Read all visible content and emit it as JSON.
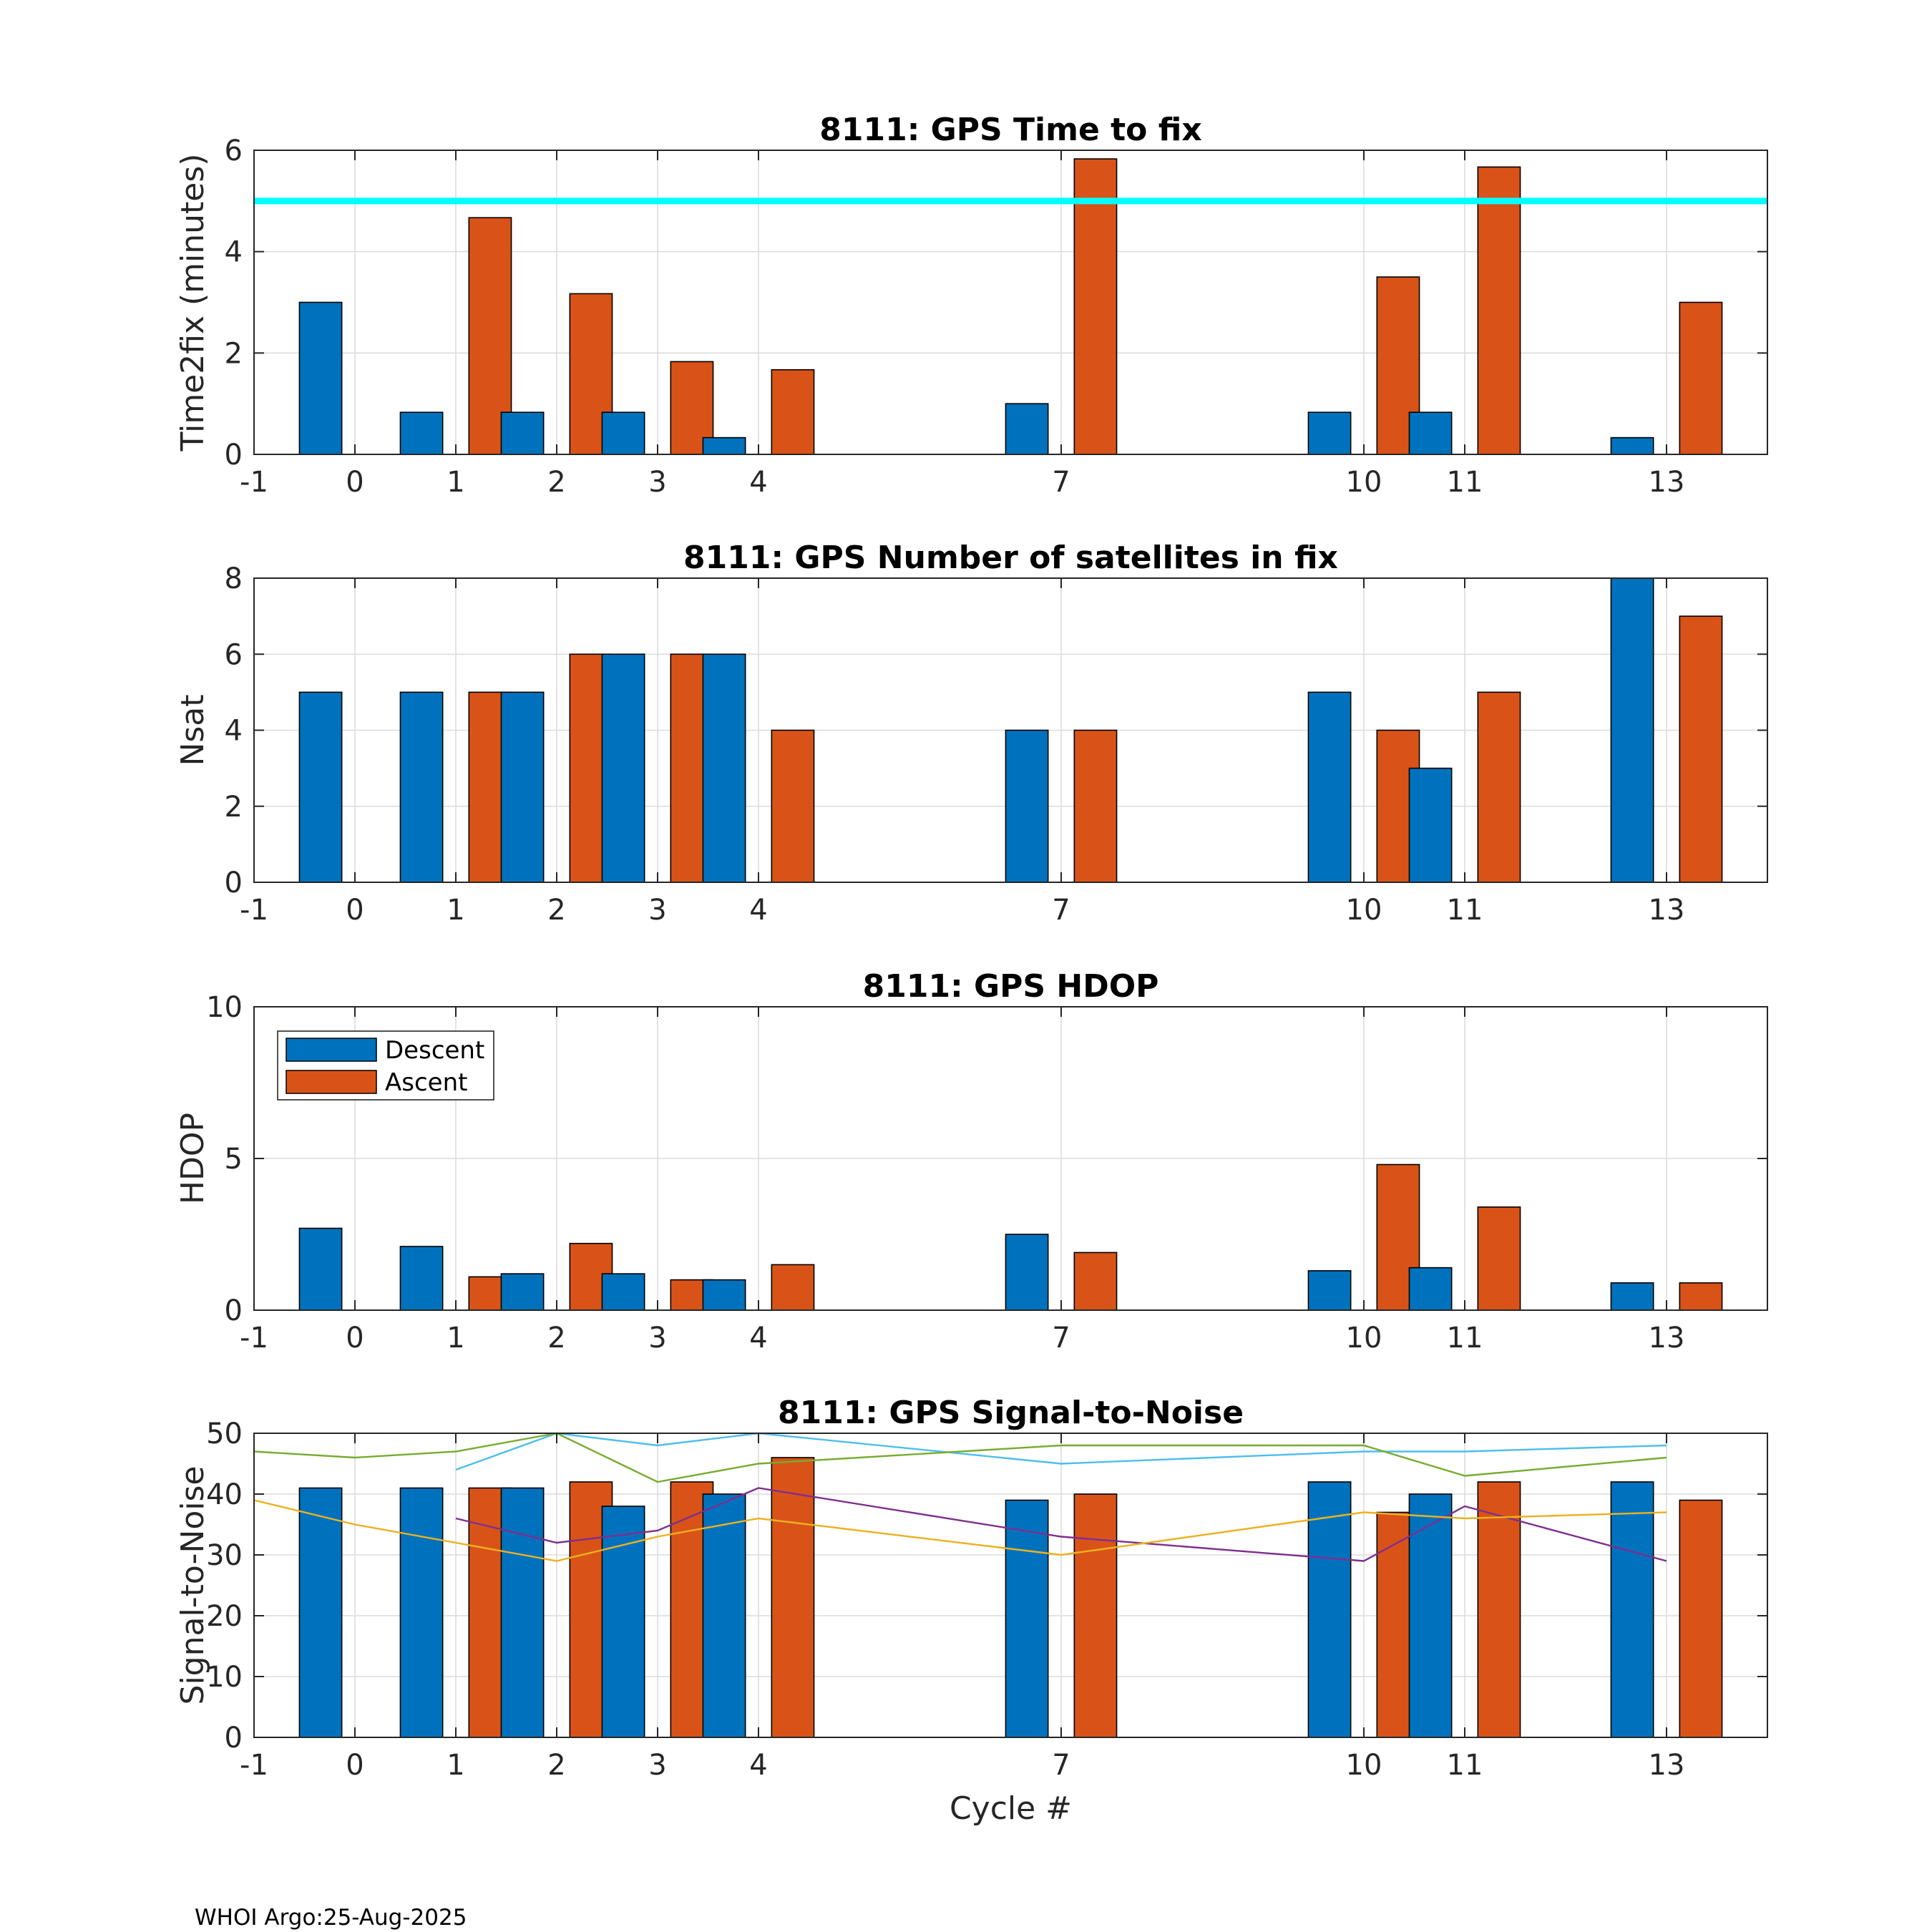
{
  "chart_data": [
    {
      "type": "bar",
      "title": "8111: GPS Time to fix",
      "ylabel": "Time2fix (minutes)",
      "xlabel": "",
      "xlim": [
        -1,
        14
      ],
      "ylim": [
        0,
        6
      ],
      "yticks": [
        0,
        2,
        4,
        6
      ],
      "xticks": [
        "-1",
        "0",
        "1",
        "2",
        "3",
        "4",
        "7",
        "10",
        "11",
        "13"
      ],
      "cycles": [
        0,
        1,
        2,
        3,
        4,
        7,
        10,
        11,
        13
      ],
      "series": [
        {
          "name": "Descent",
          "values": [
            3.0,
            0.83,
            0.83,
            0.83,
            0.33,
            1.0,
            0.83,
            0.83,
            0.33
          ]
        },
        {
          "name": "Ascent",
          "values": [
            null,
            4.67,
            3.17,
            1.83,
            1.67,
            5.83,
            3.5,
            5.67,
            3.0
          ]
        }
      ],
      "reference_line": {
        "y": 5,
        "color": "#00ffff"
      }
    },
    {
      "type": "bar",
      "title": "8111: GPS Number of satellites in fix",
      "ylabel": "Nsat",
      "xlabel": "",
      "xlim": [
        -1,
        14
      ],
      "ylim": [
        0,
        8
      ],
      "yticks": [
        0,
        2,
        4,
        6,
        8
      ],
      "xticks": [
        "-1",
        "0",
        "1",
        "2",
        "3",
        "4",
        "7",
        "10",
        "11",
        "13"
      ],
      "cycles": [
        0,
        1,
        2,
        3,
        4,
        7,
        10,
        11,
        13
      ],
      "series": [
        {
          "name": "Descent",
          "values": [
            5,
            5,
            5,
            6,
            6,
            4,
            5,
            3,
            8
          ]
        },
        {
          "name": "Ascent",
          "values": [
            null,
            5,
            6,
            6,
            4,
            4,
            4,
            5,
            7
          ]
        }
      ]
    },
    {
      "type": "bar",
      "title": "8111: GPS HDOP",
      "ylabel": "HDOP",
      "xlabel": "",
      "xlim": [
        -1,
        14
      ],
      "ylim": [
        0,
        10
      ],
      "yticks": [
        0,
        5,
        10
      ],
      "xticks": [
        "-1",
        "0",
        "1",
        "2",
        "3",
        "4",
        "7",
        "10",
        "11",
        "13"
      ],
      "cycles": [
        0,
        1,
        2,
        3,
        4,
        7,
        10,
        11,
        13
      ],
      "series": [
        {
          "name": "Descent",
          "values": [
            2.7,
            2.1,
            1.2,
            1.2,
            1.0,
            2.5,
            1.3,
            1.4,
            0.9
          ]
        },
        {
          "name": "Ascent",
          "values": [
            null,
            1.1,
            2.2,
            1.0,
            1.5,
            1.9,
            4.8,
            3.4,
            0.9
          ]
        }
      ],
      "legend": {
        "position": "top-left",
        "entries": [
          "Descent",
          "Ascent"
        ]
      }
    },
    {
      "type": "bar",
      "title": "8111: GPS Signal-to-Noise",
      "ylabel": "Signal-to-Noise",
      "xlabel": "Cycle #",
      "xlim": [
        -1,
        14
      ],
      "ylim": [
        0,
        50
      ],
      "yticks": [
        0,
        10,
        20,
        30,
        40,
        50
      ],
      "xticks": [
        "-1",
        "0",
        "1",
        "2",
        "3",
        "4",
        "7",
        "10",
        "11",
        "13"
      ],
      "cycles": [
        0,
        1,
        2,
        3,
        4,
        7,
        10,
        11,
        13
      ],
      "series": [
        {
          "name": "Descent",
          "values": [
            41,
            41,
            41,
            38,
            40,
            39,
            42,
            40,
            42
          ]
        },
        {
          "name": "Ascent",
          "values": [
            null,
            41,
            42,
            42,
            46,
            40,
            37,
            42,
            39
          ]
        }
      ],
      "lines": [
        {
          "color": "#4dbeee",
          "x": [
            1,
            2,
            3,
            4,
            7,
            10,
            11,
            13
          ],
          "y": [
            44,
            50,
            48,
            50,
            45,
            47,
            47,
            48
          ]
        },
        {
          "color": "#77ac30",
          "x": [
            -1,
            0,
            1,
            2,
            3,
            4,
            7,
            10,
            11,
            13
          ],
          "y": [
            47,
            46,
            47,
            50,
            42,
            45,
            48,
            48,
            43,
            46
          ]
        },
        {
          "color": "#7e2f8e",
          "x": [
            1,
            2,
            3,
            4,
            7,
            10,
            11,
            13
          ],
          "y": [
            36,
            32,
            34,
            41,
            33,
            29,
            38,
            29
          ]
        },
        {
          "color": "#edb120",
          "x": [
            -1,
            0,
            1,
            2,
            3,
            4,
            7,
            10,
            11,
            13
          ],
          "y": [
            39,
            35,
            32,
            29,
            33,
            36,
            30,
            37,
            36,
            37
          ]
        }
      ]
    }
  ],
  "colors": {
    "descent": "#0072bd",
    "ascent": "#d95319"
  },
  "footer": "WHOI Argo:25-Aug-2025"
}
